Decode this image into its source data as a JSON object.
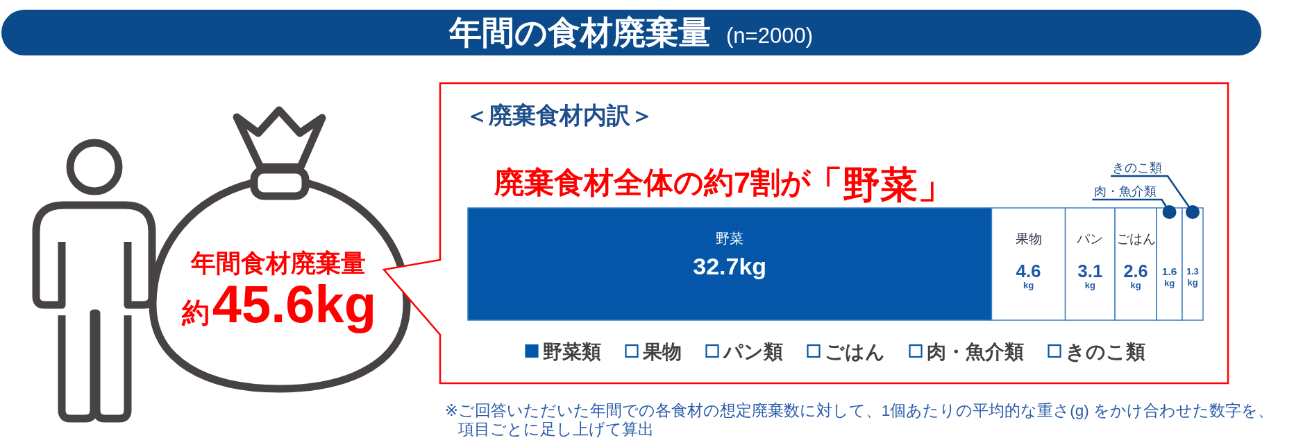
{
  "chart_data": {
    "type": "bar",
    "orientation": "horizontal",
    "stacked": true,
    "title": "年間の食材廃棄量",
    "subtitle": "(n=2000)",
    "categories": [
      null
    ],
    "series": [
      {
        "name": "野菜類",
        "color": "#0457a8",
        "values": [
          32.7
        ],
        "value_labels": [
          "32.7kg"
        ]
      },
      {
        "name": "果物",
        "color": "#ffffff",
        "values": [
          4.6
        ],
        "value_labels": [
          "4.6\nkg"
        ]
      },
      {
        "name": "パン類",
        "color": "#ffffff",
        "values": [
          3.1
        ],
        "value_labels": [
          "3.1\nkg"
        ]
      },
      {
        "name": "ごはん",
        "color": "#ffffff",
        "values": [
          2.6
        ],
        "value_labels": [
          "2.6\nkg"
        ]
      },
      {
        "name": "肉・魚介類",
        "color": "#ffffff",
        "values": [
          1.6
        ],
        "value_labels": [
          "1.6\nkg"
        ]
      },
      {
        "name": "きのこ類",
        "color": "#ffffff",
        "values": [
          1.3
        ],
        "value_labels": [
          "1.3\nkg"
        ]
      }
    ],
    "legend": "bottom",
    "annotations": [
      "＜廃棄食材内訳＞",
      "廃棄食材全体の約7割が",
      "「野菜」",
      "年間食材廃棄量",
      "約",
      "45.6kg",
      "野菜",
      "果物",
      "パン",
      "ごはん",
      "肉・魚介類",
      "きのこ類",
      "※ご回答いただいた年間での各食材の想定廃棄数に対して、1個あたりの平均的な重さ(g) をかけ合わせた数字を、項目ごとに足し上げて算出"
    ]
  }
}
